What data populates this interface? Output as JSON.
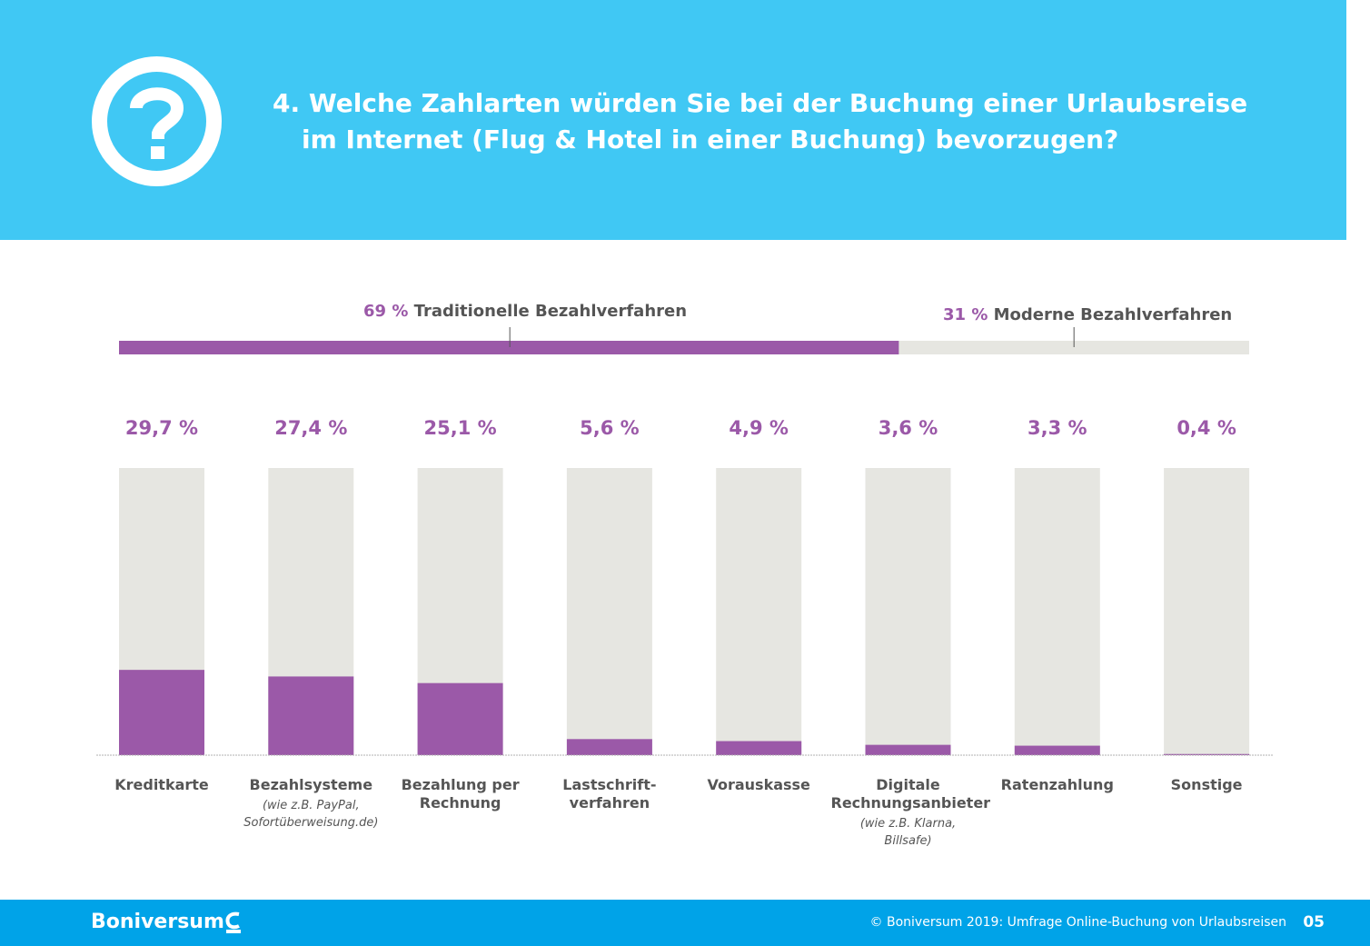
{
  "header": {
    "title_line1": "4. Welche Zahlarten würden Sie bei der Buchung einer Urlaubsreise",
    "title_line2": "im Internet (Flug & Hotel in einer Buchung) bevorzugen?",
    "icon": "question-circle-icon"
  },
  "split": {
    "traditional": {
      "pct_label": "69 %",
      "label": "Traditionelle Bezahlverfahren",
      "value": 69
    },
    "modern": {
      "pct_label": "31 %",
      "label": "Moderne Bezahlverfahren",
      "value": 31
    }
  },
  "chart_data": {
    "type": "bar",
    "categories": [
      "Kreditkarte",
      "Bezahlsysteme",
      "Bezahlung per Rechnung",
      "Lastschrift-verfahren",
      "Vorauskasse",
      "Digitale Rechnungsanbieter",
      "Ratenzahlung",
      "Sonstige"
    ],
    "category_lines": [
      [
        "Kreditkarte"
      ],
      [
        "Bezahlsysteme"
      ],
      [
        "Bezahlung per",
        "Rechnung"
      ],
      [
        "Lastschrift-",
        "verfahren"
      ],
      [
        "Vorauskasse"
      ],
      [
        "Digitale",
        "Rechnungsanbieter"
      ],
      [
        "Ratenzahlung"
      ],
      [
        "Sonstige"
      ]
    ],
    "notes": [
      "",
      "(wie z.B. PayPal, Sofortüberweisung.de)",
      "",
      "",
      "",
      "(wie z.B. Klarna, Billsafe)",
      "",
      ""
    ],
    "note_lines": [
      [],
      [
        "(wie z.B. PayPal,",
        "Sofortüberweisung.de)"
      ],
      [],
      [],
      [],
      [
        "(wie z.B. Klarna,",
        "Billsafe)"
      ],
      [],
      []
    ],
    "values": [
      29.7,
      27.4,
      25.1,
      5.6,
      4.9,
      3.6,
      3.3,
      0.4
    ],
    "value_labels": [
      "29,7 %",
      "27,4 %",
      "25,1 %",
      "5,6 %",
      "4,9 %",
      "3,6 %",
      "3,3 %",
      "0,4 %"
    ],
    "ylim": [
      0,
      100
    ],
    "colors": {
      "fill": "#9b59a8",
      "track": "#e6e6e1",
      "label": "#9b59a8",
      "text": "#555555"
    }
  },
  "footer": {
    "brand": "Boniversum",
    "copyright": "© Boniversum 2019: Umfrage Online-Buchung von Urlaubsreisen",
    "page": "05",
    "header_color": "#40c8f4",
    "footer_color": "#00a3e8"
  }
}
